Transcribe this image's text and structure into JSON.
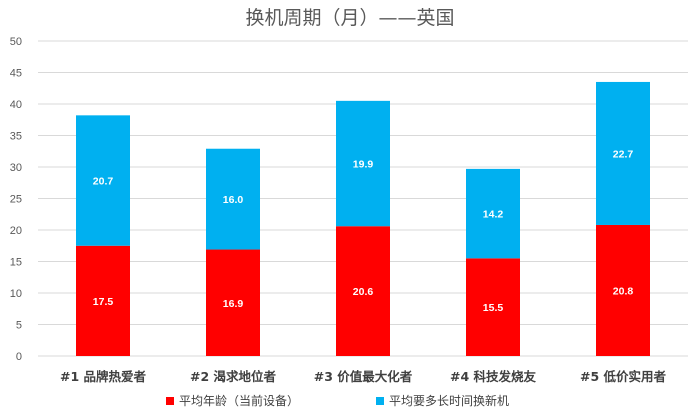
{
  "chart_data": {
    "type": "bar",
    "stacked": true,
    "title": "换机周期（月）——英国",
    "xlabel": "",
    "ylabel": "",
    "ylim": [
      0,
      50
    ],
    "yticks": [
      0,
      5,
      10,
      15,
      20,
      25,
      30,
      35,
      40,
      45,
      50
    ],
    "grid": true,
    "legend_position": "bottom",
    "categories": [
      "#1 品牌热爱者",
      "#2 渴求地位者",
      "#3 价值最大化者",
      "#4 科技发烧友",
      "#5 低价实用者"
    ],
    "series": [
      {
        "name": "平均年龄（当前设备）",
        "color": "#ff0000",
        "values": [
          17.5,
          16.9,
          20.6,
          15.5,
          20.8
        ]
      },
      {
        "name": "平均要多长时间换新机",
        "color": "#00b0f0",
        "values": [
          20.7,
          16.0,
          19.9,
          14.2,
          22.7
        ]
      }
    ]
  }
}
